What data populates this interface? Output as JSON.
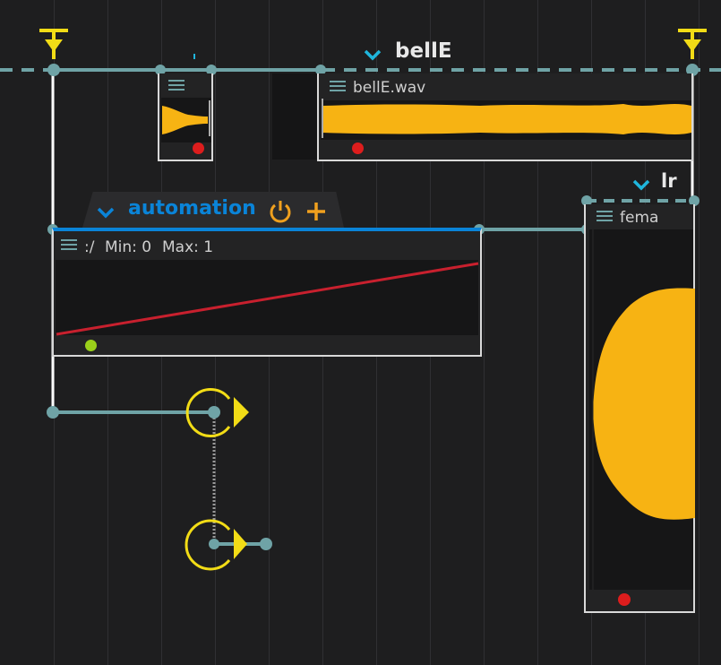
{
  "scenario_title": "bellE",
  "sound_box": {
    "label": "bellE.wav"
  },
  "rate_label": "lr",
  "file_box": {
    "label": "fema"
  },
  "automation": {
    "title": "automation",
    "curve_label": ":/",
    "min_label": "Min: 0",
    "max_label": "Max: 1"
  },
  "icons": {
    "collapse": "chevron-down-icon",
    "power": "power-icon",
    "add": "plus-icon",
    "menu": "hamburger-icon",
    "trigger": "trigger-icon",
    "play_state": "play-state-icon"
  },
  "colors": {
    "background": "#1e1e1f",
    "connection": "#6fa3a6",
    "accent_blue": "#0a84d8",
    "cyan": "#1fb6dc",
    "waveform": "#f7b313",
    "trigger_yellow": "#f2dc16",
    "automation_curve": "#c8202e",
    "record_dot": "#dd1d1d",
    "green_dot": "#9ad01a",
    "orange": "#f0a01e"
  }
}
